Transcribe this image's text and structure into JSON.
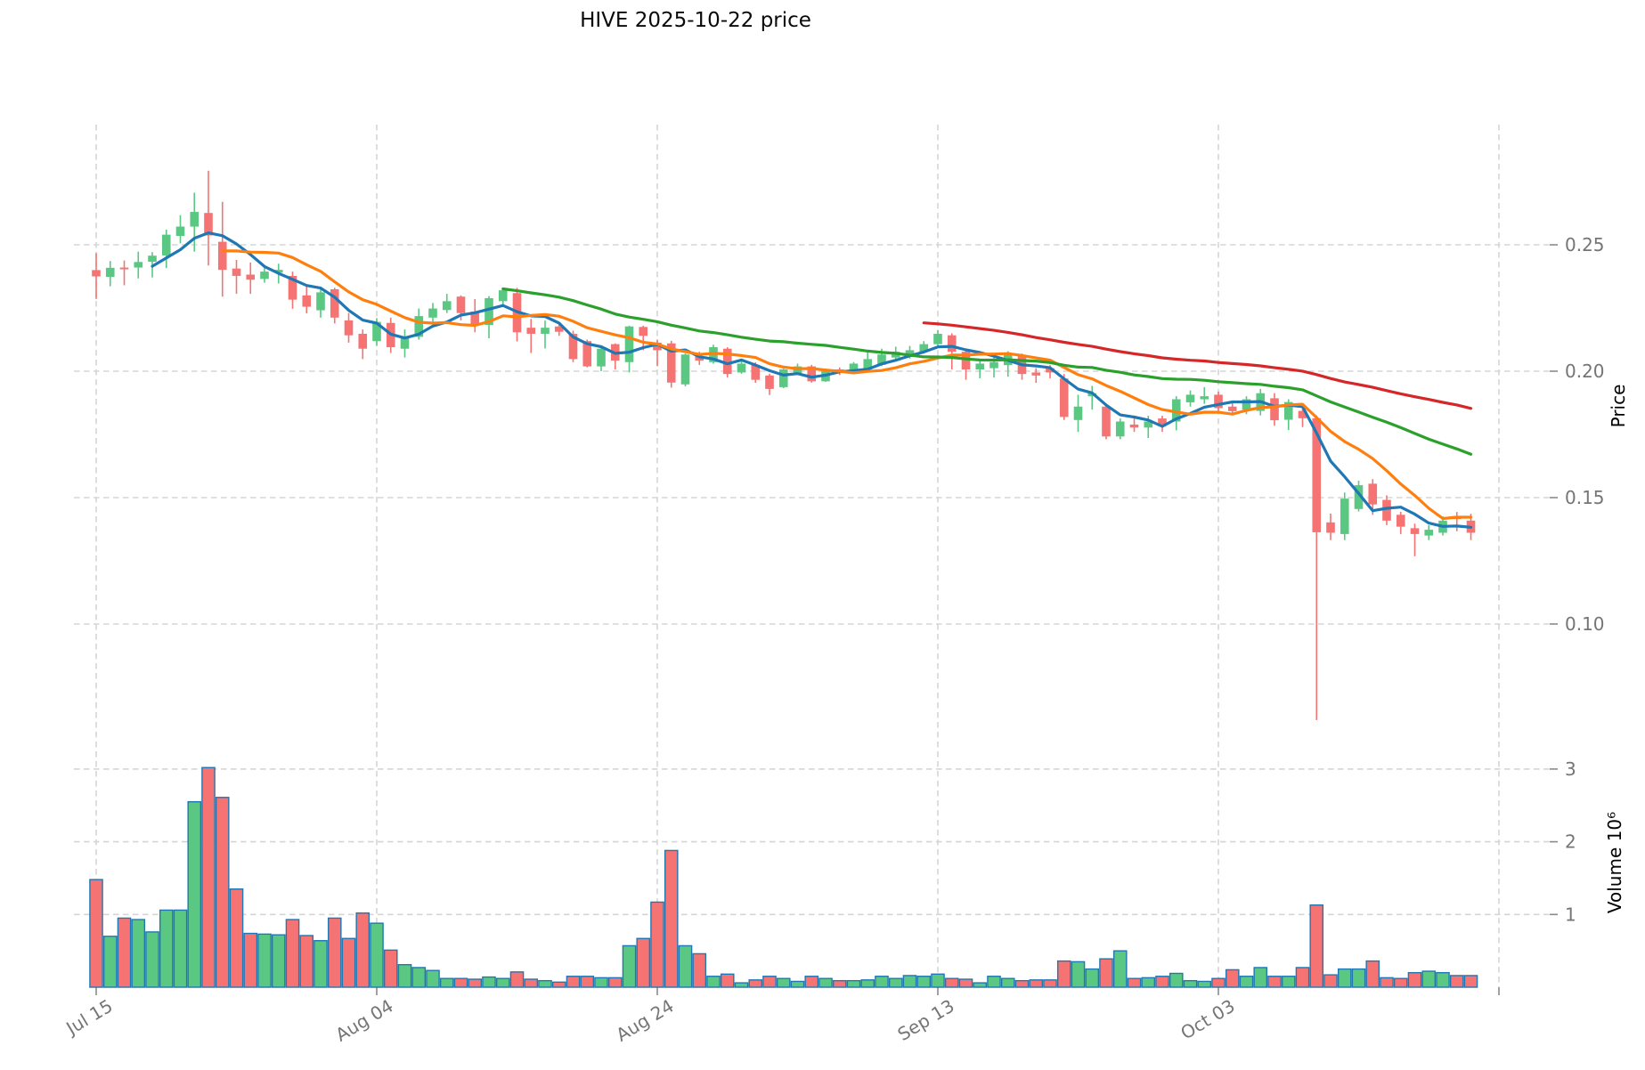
{
  "title": "HIVE  2025-10-22  price",
  "colors": {
    "background": "#ffffff",
    "up": "#5ac882",
    "down": "#f57373",
    "volume_edge": "#1f77b4",
    "grid": "#d5d5d5",
    "tick_label": "#757575",
    "mav5": "#1f77b4",
    "mav10": "#ff7f0e",
    "mav30": "#2ca02c",
    "mav60": "#d62728"
  },
  "chart_data": [
    {
      "type": "candlestick",
      "panel": "price",
      "title": "HIVE  2025-10-22  price",
      "ylabel": "Price",
      "legend_position": "none",
      "grid": true,
      "x_tick_labels": [
        "Jul 15",
        "Aug 04",
        "Aug 24",
        "Sep 13",
        "Oct 03",
        ""
      ],
      "x_tick_indices": [
        0,
        20,
        40,
        60,
        80,
        100
      ],
      "y_ticks": [
        0.1,
        0.15,
        0.2,
        0.25
      ],
      "y_tick_labels": [
        "0.10",
        "0.15",
        "0.20",
        "0.25"
      ],
      "ylim": [
        0.054,
        0.298
      ],
      "xlim_index": [
        -1.6,
        103.6
      ],
      "moving_averages": [
        {
          "window": 5,
          "color_key": "mav5"
        },
        {
          "window": 10,
          "color_key": "mav10"
        },
        {
          "window": 30,
          "color_key": "mav30"
        },
        {
          "window": 60,
          "color_key": "mav60"
        }
      ],
      "open": [
        0.24,
        0.2373,
        0.241,
        0.241,
        0.2433,
        0.2458,
        0.2535,
        0.2572,
        0.2626,
        0.2512,
        0.2406,
        0.2382,
        0.2365,
        0.239,
        0.2377,
        0.23,
        0.2241,
        0.2324,
        0.2201,
        0.2148,
        0.2119,
        0.2191,
        0.2089,
        0.2136,
        0.2212,
        0.2242,
        0.2295,
        0.2236,
        0.2183,
        0.2277,
        0.2309,
        0.2172,
        0.2148,
        0.2177,
        0.2148,
        0.2119,
        0.2019,
        0.2107,
        0.2036,
        0.2175,
        0.2113,
        0.211,
        0.1948,
        0.206,
        0.2036,
        0.2089,
        0.1995,
        0.2025,
        0.1983,
        0.1937,
        0.1989,
        0.2019,
        0.196,
        0.2007,
        0.1995,
        0.2007,
        0.2025,
        0.2054,
        0.2057,
        0.2077,
        0.2107,
        0.2142,
        0.2077,
        0.2007,
        0.2012,
        0.2024,
        0.2065,
        0.1995,
        0.2012,
        0.1971,
        0.1807,
        0.1901,
        0.186,
        0.1742,
        0.1789,
        0.1777,
        0.1813,
        0.1801,
        0.1877,
        0.1889,
        0.1907,
        0.186,
        0.1848,
        0.1843,
        0.1893,
        0.1808,
        0.1843,
        0.1814,
        0.1402,
        0.1356,
        0.1455,
        0.1555,
        0.1491,
        0.1432,
        0.1379,
        0.135,
        0.1361,
        0.1427,
        0.1409
      ],
      "high": [
        0.2467,
        0.2436,
        0.2438,
        0.2473,
        0.2471,
        0.256,
        0.2617,
        0.2706,
        0.2793,
        0.267,
        0.244,
        0.243,
        0.242,
        0.2425,
        0.2394,
        0.2341,
        0.233,
        0.233,
        0.223,
        0.2165,
        0.221,
        0.2212,
        0.2165,
        0.2248,
        0.227,
        0.2306,
        0.23,
        0.2285,
        0.2297,
        0.2327,
        0.233,
        0.2207,
        0.22,
        0.2195,
        0.216,
        0.2125,
        0.21,
        0.211,
        0.218,
        0.218,
        0.2125,
        0.212,
        0.207,
        0.2077,
        0.2105,
        0.2095,
        0.2048,
        0.2035,
        0.199,
        0.201,
        0.203,
        0.2025,
        0.201,
        0.2015,
        0.2036,
        0.2083,
        0.2089,
        0.2097,
        0.21,
        0.2119,
        0.2163,
        0.215,
        0.2085,
        0.2042,
        0.206,
        0.2079,
        0.207,
        0.2012,
        0.2024,
        0.1989,
        0.1907,
        0.1942,
        0.1872,
        0.1813,
        0.1813,
        0.1824,
        0.1824,
        0.1901,
        0.1924,
        0.1937,
        0.1919,
        0.1877,
        0.1901,
        0.193,
        0.1913,
        0.1889,
        0.1855,
        0.1825,
        0.1437,
        0.152,
        0.1567,
        0.1573,
        0.1509,
        0.1444,
        0.1397,
        0.1391,
        0.1426,
        0.1443,
        0.1436
      ],
      "low": [
        0.2286,
        0.2336,
        0.234,
        0.2367,
        0.2371,
        0.2408,
        0.2506,
        0.2473,
        0.2418,
        0.2295,
        0.2306,
        0.2306,
        0.235,
        0.2347,
        0.2247,
        0.2229,
        0.2212,
        0.2189,
        0.2113,
        0.2048,
        0.21,
        0.2072,
        0.2054,
        0.2125,
        0.2195,
        0.223,
        0.2201,
        0.2154,
        0.213,
        0.226,
        0.2118,
        0.2072,
        0.209,
        0.214,
        0.2036,
        0.2015,
        0.2,
        0.2007,
        0.1995,
        0.2083,
        0.202,
        0.1935,
        0.194,
        0.2025,
        0.203,
        0.1975,
        0.199,
        0.1954,
        0.1906,
        0.1933,
        0.1985,
        0.1955,
        0.1958,
        0.1985,
        0.199,
        0.2,
        0.202,
        0.2048,
        0.205,
        0.207,
        0.21,
        0.2007,
        0.1966,
        0.1972,
        0.1975,
        0.1978,
        0.1966,
        0.1954,
        0.1972,
        0.1807,
        0.176,
        0.1848,
        0.1731,
        0.1731,
        0.176,
        0.1736,
        0.176,
        0.1766,
        0.186,
        0.1871,
        0.1836,
        0.1825,
        0.183,
        0.1825,
        0.1784,
        0.1767,
        0.1779,
        0.062,
        0.1332,
        0.1332,
        0.1445,
        0.1432,
        0.1391,
        0.1356,
        0.1268,
        0.1332,
        0.135,
        0.1367,
        0.1332
      ],
      "close": [
        0.2375,
        0.2409,
        0.2403,
        0.2432,
        0.2457,
        0.254,
        0.2572,
        0.263,
        0.2537,
        0.2401,
        0.2377,
        0.2362,
        0.2394,
        0.2401,
        0.2283,
        0.2255,
        0.2312,
        0.2212,
        0.2142,
        0.2089,
        0.2195,
        0.2095,
        0.2136,
        0.2218,
        0.2248,
        0.2277,
        0.223,
        0.2183,
        0.2289,
        0.232,
        0.2154,
        0.2148,
        0.2172,
        0.2156,
        0.2048,
        0.2019,
        0.2089,
        0.2042,
        0.2177,
        0.214,
        0.2083,
        0.1955,
        0.2066,
        0.2042,
        0.2095,
        0.1989,
        0.203,
        0.1966,
        0.193,
        0.2007,
        0.2019,
        0.196,
        0.2007,
        0.1995,
        0.203,
        0.2048,
        0.2066,
        0.2077,
        0.2083,
        0.2107,
        0.2148,
        0.2077,
        0.2007,
        0.203,
        0.2036,
        0.2065,
        0.1989,
        0.1983,
        0.1995,
        0.1819,
        0.186,
        0.1913,
        0.1742,
        0.1801,
        0.1777,
        0.1801,
        0.179,
        0.1889,
        0.1907,
        0.1901,
        0.1854,
        0.1842,
        0.1889,
        0.1913,
        0.1806,
        0.1878,
        0.1814,
        0.1363,
        0.1361,
        0.1496,
        0.1549,
        0.1473,
        0.1409,
        0.1385,
        0.1356,
        0.1373,
        0.1409,
        0.1415,
        0.1361
      ]
    },
    {
      "type": "bar",
      "panel": "volume",
      "ylabel": "Volume  10⁶",
      "grid": true,
      "y_ticks": [
        1,
        2,
        3
      ],
      "y_tick_labels": [
        "1",
        "2",
        "3"
      ],
      "ylim": [
        0,
        3.29
      ],
      "values_millions": [
        1.48,
        0.7,
        0.95,
        0.93,
        0.76,
        1.06,
        1.06,
        2.55,
        3.02,
        2.61,
        1.35,
        0.74,
        0.73,
        0.72,
        0.93,
        0.71,
        0.64,
        0.95,
        0.67,
        1.02,
        0.88,
        0.51,
        0.31,
        0.27,
        0.23,
        0.12,
        0.12,
        0.11,
        0.14,
        0.12,
        0.21,
        0.11,
        0.09,
        0.07,
        0.15,
        0.15,
        0.13,
        0.13,
        0.57,
        0.67,
        1.17,
        1.88,
        0.57,
        0.46,
        0.15,
        0.18,
        0.06,
        0.1,
        0.15,
        0.12,
        0.08,
        0.15,
        0.12,
        0.09,
        0.09,
        0.1,
        0.15,
        0.12,
        0.16,
        0.15,
        0.18,
        0.12,
        0.11,
        0.06,
        0.15,
        0.12,
        0.09,
        0.1,
        0.1,
        0.36,
        0.35,
        0.25,
        0.39,
        0.5,
        0.12,
        0.13,
        0.15,
        0.19,
        0.09,
        0.08,
        0.12,
        0.24,
        0.15,
        0.27,
        0.15,
        0.15,
        0.27,
        1.13,
        0.17,
        0.25,
        0.25,
        0.36,
        0.13,
        0.12,
        0.2,
        0.22,
        0.2,
        0.16,
        0.16
      ]
    }
  ]
}
